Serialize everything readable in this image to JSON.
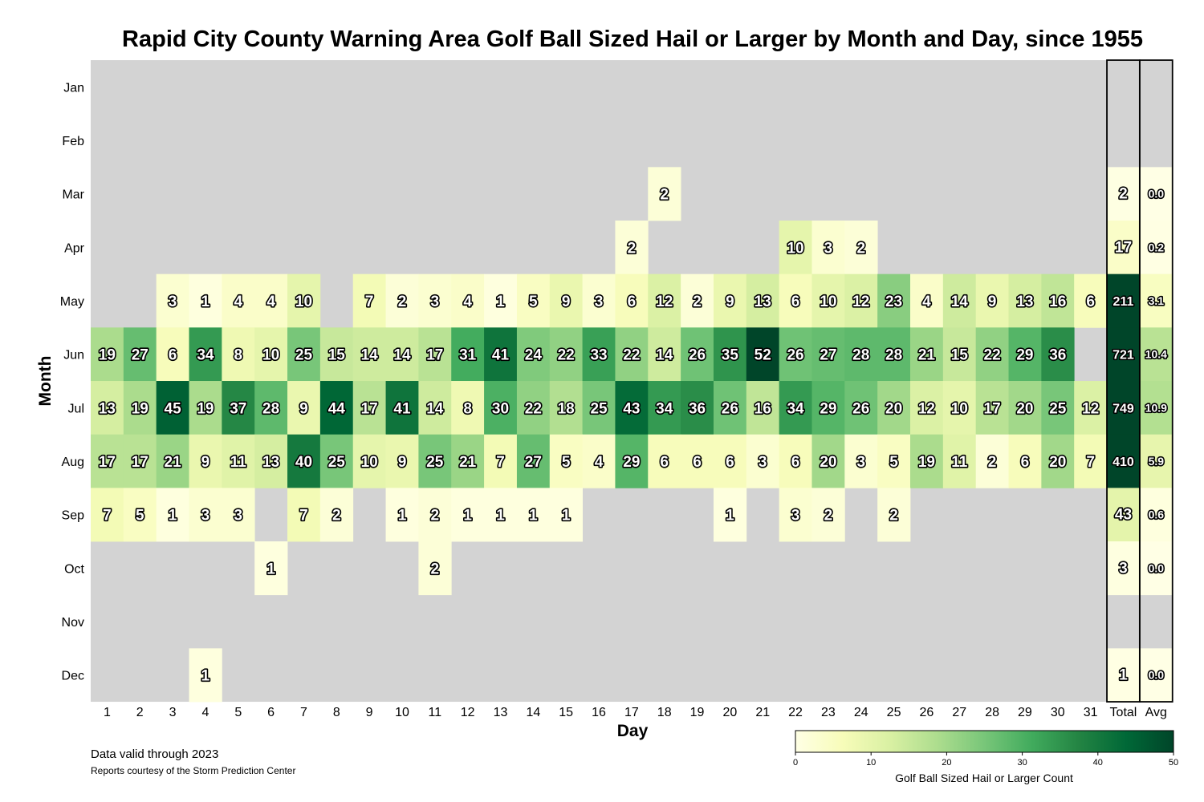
{
  "chart_data": {
    "type": "heatmap",
    "title": "Rapid City County Warning Area Golf Ball Sized Hail or Larger by Month and Day, since 1955",
    "xlabel": "Day",
    "ylabel": "Month",
    "months": [
      "Jan",
      "Feb",
      "Mar",
      "Apr",
      "May",
      "Jun",
      "Jul",
      "Aug",
      "Sep",
      "Oct",
      "Nov",
      "Dec"
    ],
    "days": [
      "1",
      "2",
      "3",
      "4",
      "5",
      "6",
      "7",
      "8",
      "9",
      "10",
      "11",
      "12",
      "13",
      "14",
      "15",
      "16",
      "17",
      "18",
      "19",
      "20",
      "21",
      "22",
      "23",
      "24",
      "25",
      "26",
      "27",
      "28",
      "29",
      "30",
      "31"
    ],
    "summary_columns": [
      "Total",
      "Avg"
    ],
    "values": [
      [
        null,
        null,
        null,
        null,
        null,
        null,
        null,
        null,
        null,
        null,
        null,
        null,
        null,
        null,
        null,
        null,
        null,
        null,
        null,
        null,
        null,
        null,
        null,
        null,
        null,
        null,
        null,
        null,
        null,
        null,
        null
      ],
      [
        null,
        null,
        null,
        null,
        null,
        null,
        null,
        null,
        null,
        null,
        null,
        null,
        null,
        null,
        null,
        null,
        null,
        null,
        null,
        null,
        null,
        null,
        null,
        null,
        null,
        null,
        null,
        null,
        null,
        null,
        null
      ],
      [
        null,
        null,
        null,
        null,
        null,
        null,
        null,
        null,
        null,
        null,
        null,
        null,
        null,
        null,
        null,
        null,
        null,
        2,
        null,
        null,
        null,
        null,
        null,
        null,
        null,
        null,
        null,
        null,
        null,
        null,
        null
      ],
      [
        null,
        null,
        null,
        null,
        null,
        null,
        null,
        null,
        null,
        null,
        null,
        null,
        null,
        null,
        null,
        null,
        2,
        null,
        null,
        null,
        null,
        10,
        3,
        2,
        null,
        null,
        null,
        null,
        null,
        null,
        null
      ],
      [
        null,
        null,
        3,
        1,
        4,
        4,
        10,
        null,
        7,
        2,
        3,
        4,
        1,
        5,
        9,
        3,
        6,
        12,
        2,
        9,
        13,
        6,
        10,
        12,
        23,
        4,
        14,
        9,
        13,
        16,
        6
      ],
      [
        19,
        27,
        6,
        34,
        8,
        10,
        25,
        15,
        14,
        14,
        17,
        31,
        41,
        24,
        22,
        33,
        22,
        14,
        26,
        35,
        52,
        26,
        27,
        28,
        28,
        21,
        15,
        22,
        29,
        36,
        null
      ],
      [
        13,
        19,
        45,
        19,
        37,
        28,
        9,
        44,
        17,
        41,
        14,
        8,
        30,
        22,
        18,
        25,
        43,
        34,
        36,
        26,
        16,
        34,
        29,
        26,
        20,
        12,
        10,
        17,
        20,
        25,
        12
      ],
      [
        17,
        17,
        21,
        9,
        11,
        13,
        40,
        25,
        10,
        9,
        25,
        21,
        7,
        27,
        5,
        4,
        29,
        6,
        6,
        6,
        3,
        6,
        20,
        3,
        5,
        19,
        11,
        2,
        6,
        20,
        7
      ],
      [
        7,
        5,
        1,
        3,
        3,
        null,
        7,
        2,
        null,
        1,
        2,
        1,
        1,
        1,
        1,
        null,
        null,
        null,
        null,
        1,
        null,
        3,
        2,
        null,
        2,
        null,
        null,
        null,
        null,
        null,
        null
      ],
      [
        null,
        null,
        null,
        null,
        null,
        1,
        null,
        null,
        null,
        null,
        2,
        null,
        null,
        null,
        null,
        null,
        null,
        null,
        null,
        null,
        null,
        null,
        null,
        null,
        null,
        null,
        null,
        null,
        null,
        null,
        null
      ],
      [
        null,
        null,
        null,
        null,
        null,
        null,
        null,
        null,
        null,
        null,
        null,
        null,
        null,
        null,
        null,
        null,
        null,
        null,
        null,
        null,
        null,
        null,
        null,
        null,
        null,
        null,
        null,
        null,
        null,
        null,
        null
      ],
      [
        null,
        null,
        null,
        1,
        null,
        null,
        null,
        null,
        null,
        null,
        null,
        null,
        null,
        null,
        null,
        null,
        null,
        null,
        null,
        null,
        null,
        null,
        null,
        null,
        null,
        null,
        null,
        null,
        null,
        null,
        null
      ]
    ],
    "totals": [
      null,
      null,
      2,
      17,
      211,
      721,
      749,
      410,
      43,
      3,
      null,
      1
    ],
    "averages": [
      null,
      null,
      "0.0",
      "0.2",
      "3.1",
      "10.4",
      "10.9",
      "5.9",
      "0.6",
      "0.0",
      null,
      "0.0"
    ],
    "colorbar": {
      "label": "Golf Ball Sized Hail or Larger Count",
      "min": 0,
      "max": 50,
      "ticks": [
        "0",
        "10",
        "20",
        "30",
        "40",
        "50"
      ],
      "colormap": "YlGn"
    },
    "missing_color": "#d3d3d3",
    "notes": [
      "Data valid through 2023",
      "Reports courtesy of the Storm Prediction Center"
    ]
  }
}
